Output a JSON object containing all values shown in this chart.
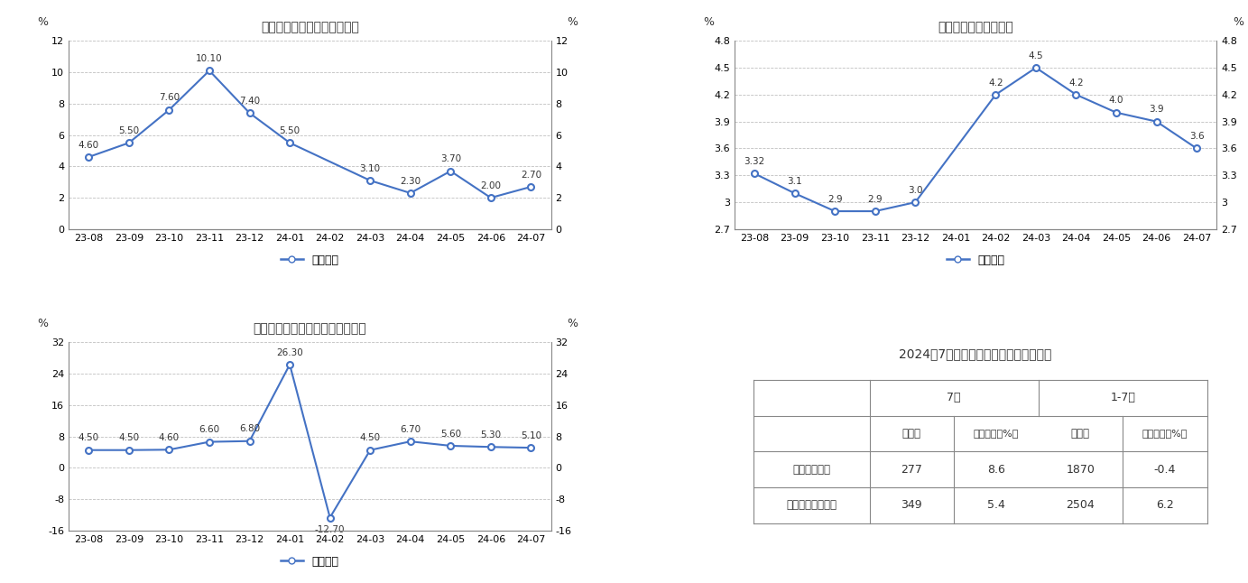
{
  "chart1": {
    "title": "社会消费品零售总额同比增速",
    "x_labels": [
      "23-08",
      "23-09",
      "23-10",
      "23-11",
      "23-12",
      "24-01",
      "24-02",
      "24-03",
      "24-04",
      "24-05",
      "24-06",
      "24-07"
    ],
    "values": [
      4.6,
      5.5,
      7.6,
      10.1,
      7.4,
      5.5,
      3.1,
      2.3,
      3.7,
      2.0,
      2.7
    ],
    "x_indices": [
      0,
      1,
      2,
      3,
      4,
      5,
      7,
      8,
      9,
      10,
      11
    ],
    "value_labels": [
      "4.60",
      "5.50",
      "7.60",
      "10.10",
      "7.40",
      "5.50",
      "3.10",
      "2.30",
      "3.70",
      "2.00",
      "2.70"
    ],
    "ylim": [
      0,
      12
    ],
    "yticks": [
      0,
      2,
      4,
      6,
      8,
      10,
      12
    ],
    "ylabel": "%",
    "legend": "当月同比",
    "line_color": "#4472c4",
    "marker_color": "#ffffff",
    "marker_edge": "#4472c4"
  },
  "chart2": {
    "title": "固定资产投资同比增速",
    "x_labels": [
      "23-08",
      "23-09",
      "23-10",
      "23-11",
      "23-12",
      "24-01",
      "24-02",
      "24-03",
      "24-04",
      "24-05",
      "24-06",
      "24-07"
    ],
    "values": [
      3.32,
      3.1,
      2.9,
      2.9,
      3.0,
      4.2,
      4.5,
      4.2,
      4.0,
      3.9,
      3.6
    ],
    "x_indices": [
      0,
      1,
      2,
      3,
      4,
      6,
      7,
      8,
      9,
      10,
      11
    ],
    "value_labels": [
      "3.32",
      "3.1",
      "2.9",
      "2.9",
      "3.0",
      "4.2",
      "4.5",
      "4.2",
      "4.0",
      "3.9",
      "3.6"
    ],
    "ylim": [
      2.7,
      4.8
    ],
    "yticks": [
      2.7,
      3.0,
      3.3,
      3.6,
      3.9,
      4.2,
      4.5,
      4.8
    ],
    "ylabel": "%",
    "legend": "累计同比",
    "line_color": "#4472c4",
    "marker_color": "#ffffff",
    "marker_edge": "#4472c4"
  },
  "chart3": {
    "title": "规模以上工业增加值同比增长速度",
    "x_labels": [
      "23-08",
      "23-09",
      "23-10",
      "23-11",
      "23-12",
      "24-01",
      "24-02",
      "24-03",
      "24-04",
      "24-05",
      "24-06",
      "24-07"
    ],
    "values": [
      4.5,
      4.5,
      4.6,
      6.6,
      6.8,
      26.3,
      -12.7,
      4.5,
      6.7,
      5.6,
      5.3,
      5.1
    ],
    "x_indices": [
      0,
      1,
      2,
      3,
      4,
      5,
      6,
      7,
      8,
      9,
      10,
      11
    ],
    "value_labels": [
      "4.50",
      "4.50",
      "4.60",
      "6.60",
      "6.80",
      "26.30",
      "-12.70",
      "4.50",
      "6.70",
      "5.60",
      "5.30",
      "5.10"
    ],
    "ylim": [
      -16,
      32
    ],
    "yticks": [
      -16,
      -8,
      0,
      8,
      16,
      24,
      32
    ],
    "ylabel": "%",
    "legend": "当月同比",
    "line_color": "#4472c4",
    "marker_color": "#ffffff",
    "marker_edge": "#4472c4"
  },
  "table": {
    "title": "2024年7月份规模以上工业生产主要数据",
    "row1_header": "7月",
    "row1_header2": "1-7月",
    "sub_col1": "绝对量",
    "sub_col2": "同比增长（%）",
    "sub_col3": "绝对量",
    "sub_col4": "同比增长（%）",
    "row1_label": "乙烯（万吨）",
    "row1_data": [
      "277",
      "8.6",
      "1870",
      "-0.4"
    ],
    "row2_label": "烧碱折百（万吨）",
    "row2_data": [
      "349",
      "5.4",
      "2504",
      "6.2"
    ]
  },
  "bg_color": "#ffffff",
  "grid_color": "#c0c0c0",
  "text_color": "#333333",
  "border_color": "#888888"
}
